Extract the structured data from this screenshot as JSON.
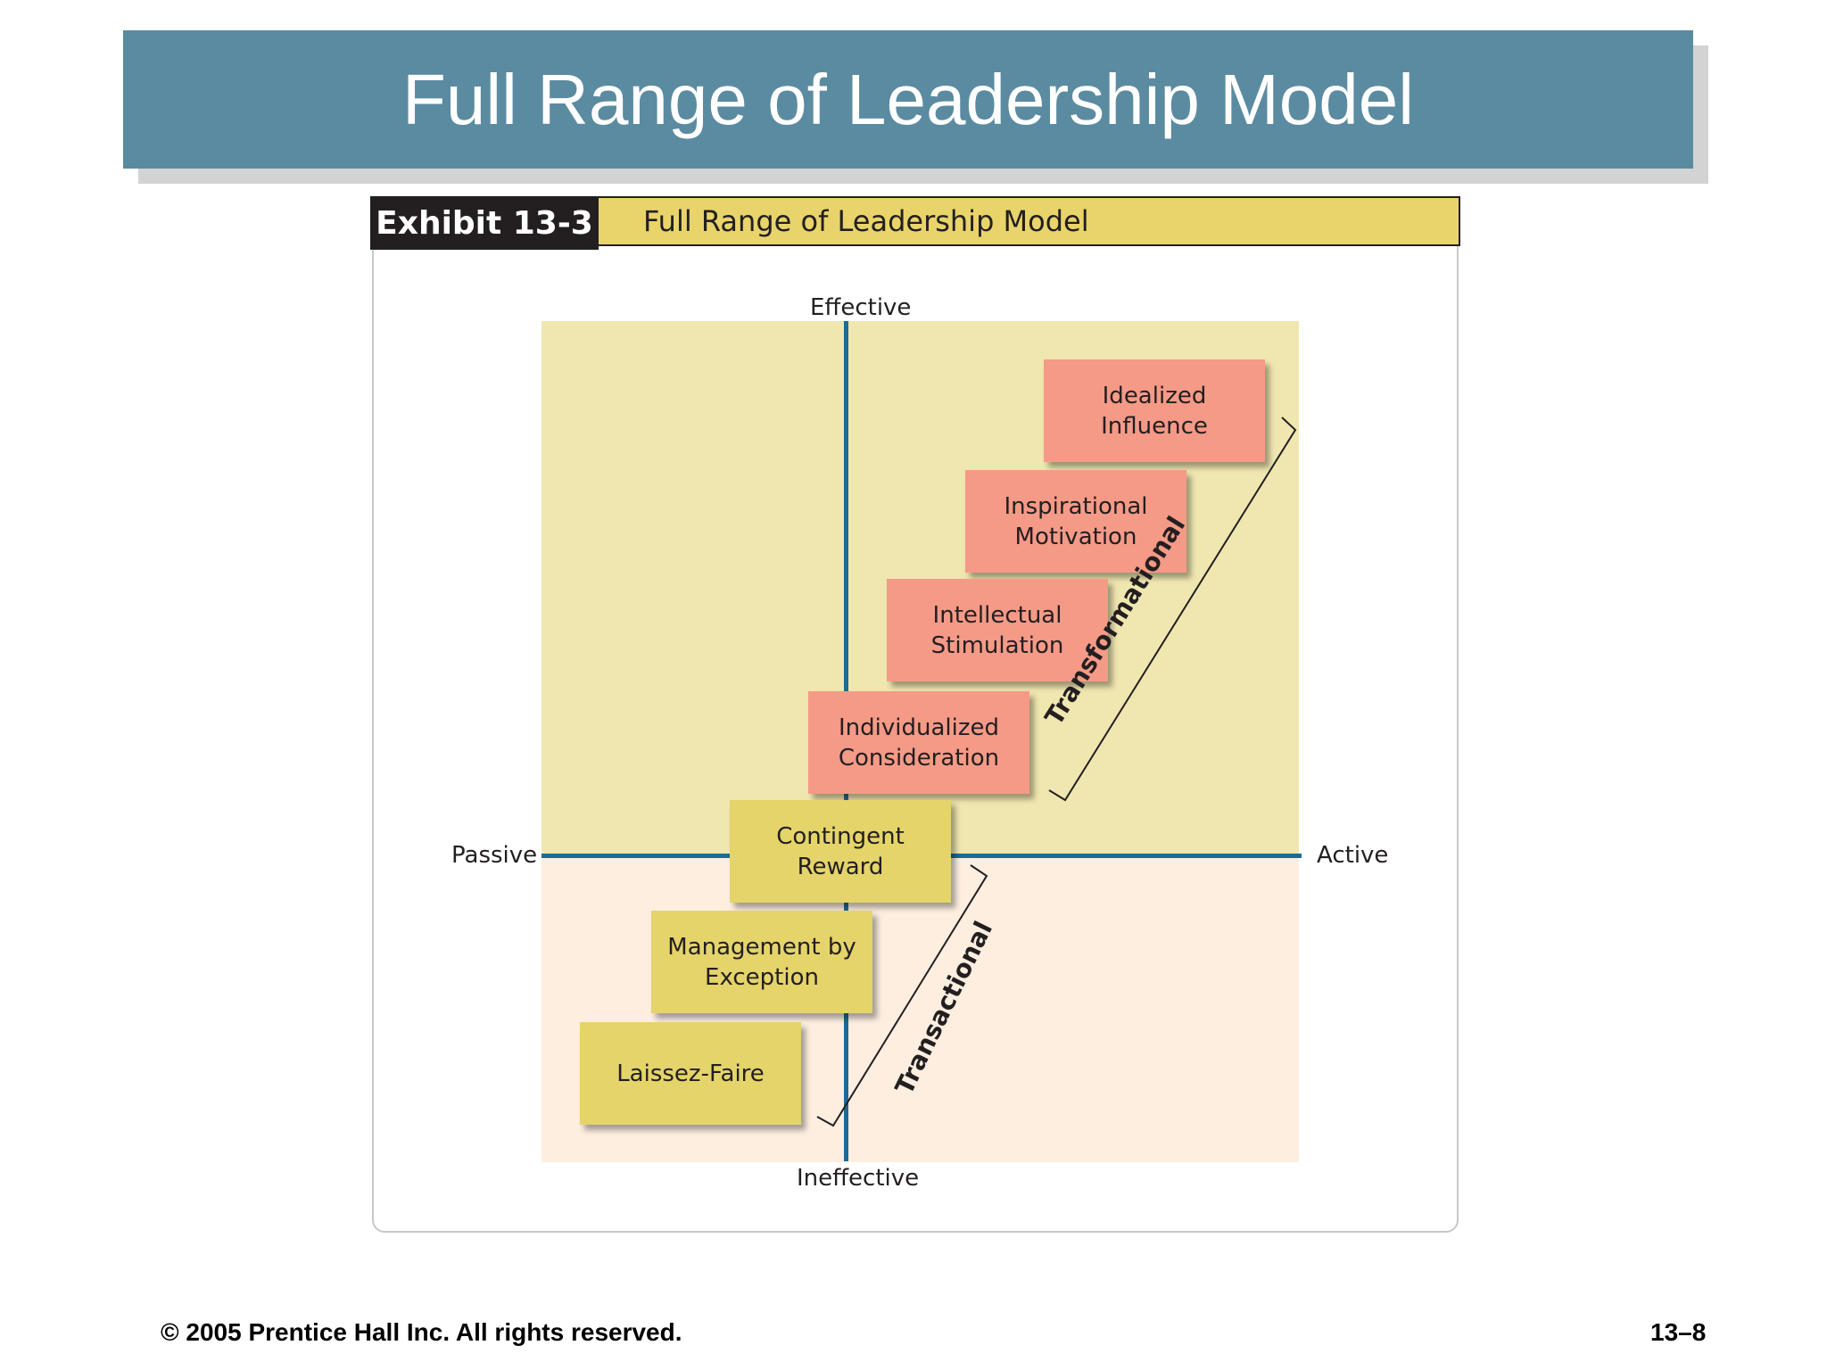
{
  "slide": {
    "title": "Full Range of Leadership Model"
  },
  "exhibit": {
    "label": "Exhibit 13-3",
    "title": "Full Range of Leadership Model"
  },
  "axes": {
    "top": "Effective",
    "bottom": "Ineffective",
    "left": "Passive",
    "right": "Active"
  },
  "boxes": {
    "idealized": "Idealized Influence",
    "inspirational": "Inspirational Motivation",
    "intellectual": "Intellectual Stimulation",
    "individualized": "Individualized Consideration",
    "contingent": "Contingent Reward",
    "management": "Management by Exception",
    "laissez": "Laissez-Faire"
  },
  "groups": {
    "transformational": "Transformational",
    "transactional": "Transactional"
  },
  "colors": {
    "title_bar": "#5b8ba1",
    "transformational_box": "#f59a87",
    "transactional_box": "#e4d46a",
    "axis": "#1d6a94",
    "effective_region": "#f0e6b0",
    "ineffective_region": "#fdeee0"
  },
  "footer": {
    "copyright": "© 2005 Prentice Hall Inc. All rights reserved.",
    "page_number": "13–8"
  }
}
